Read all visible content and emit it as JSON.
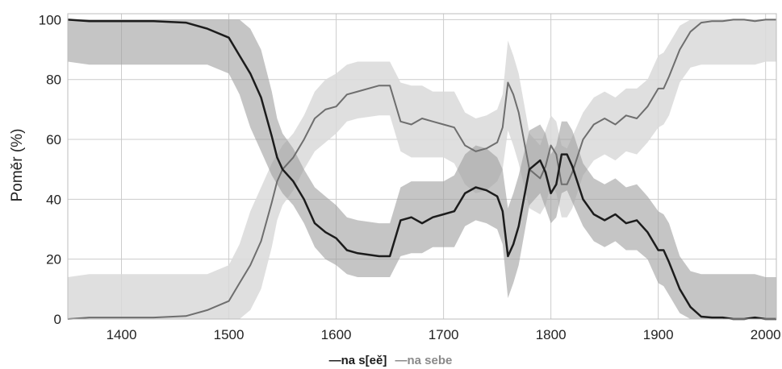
{
  "chart_data": {
    "type": "line",
    "title": "",
    "xlabel": "",
    "ylabel": "Poměr (%)",
    "xlim": [
      1350,
      2010
    ],
    "ylim": [
      0,
      102
    ],
    "xticks": [
      1400,
      1500,
      1600,
      1700,
      1800,
      1900,
      2000
    ],
    "yticks": [
      0,
      20,
      40,
      60,
      80,
      100
    ],
    "xtick_labels": [
      "1400",
      "1500",
      "1600",
      "1700",
      "1800",
      "1900",
      "2000"
    ],
    "ytick_labels": [
      "0",
      "20",
      "40",
      "60",
      "80",
      "100"
    ],
    "grid": true,
    "legend_position": "bottom-center",
    "colors": {
      "na_see": "#1c1c1c",
      "na_sebe": "#6e6e6e",
      "band_dark": "#9e9e9e",
      "band_light": "#d9d9d9",
      "grid": "#cccccc"
    },
    "legend": {
      "dash": "—",
      "s1": "na s[eě]",
      "s2": "na sebe"
    },
    "series": [
      {
        "name": "na s[eě]",
        "x": [
          1350,
          1370,
          1400,
          1430,
          1460,
          1480,
          1500,
          1510,
          1520,
          1530,
          1540,
          1545,
          1550,
          1560,
          1570,
          1580,
          1590,
          1600,
          1610,
          1620,
          1640,
          1650,
          1660,
          1670,
          1680,
          1690,
          1700,
          1710,
          1720,
          1730,
          1740,
          1750,
          1755,
          1760,
          1765,
          1770,
          1780,
          1790,
          1795,
          1800,
          1805,
          1810,
          1815,
          1820,
          1830,
          1840,
          1850,
          1860,
          1870,
          1880,
          1890,
          1900,
          1905,
          1910,
          1920,
          1930,
          1940,
          1950,
          1960,
          1970,
          1980,
          1990,
          2000,
          2010
        ],
        "y": [
          100,
          99.5,
          99.5,
          99.5,
          99,
          97,
          94,
          88,
          82,
          74,
          61,
          54,
          50,
          46,
          40,
          32,
          29,
          27,
          23,
          22,
          21,
          21,
          33,
          34,
          32,
          34,
          35,
          36,
          42,
          44,
          43,
          41,
          36,
          21,
          25,
          31,
          50,
          53,
          49,
          42,
          45,
          55,
          55,
          51,
          40,
          35,
          33,
          35,
          32,
          33,
          29,
          23,
          23,
          19,
          10,
          4,
          0.8,
          0.5,
          0.5,
          0,
          0,
          0.5,
          0,
          0
        ],
        "ci_lower": [
          86,
          85,
          85,
          85,
          85,
          85,
          82,
          75,
          64,
          56,
          48,
          45,
          42,
          38,
          32,
          24,
          20,
          18,
          15,
          14,
          14,
          14,
          21,
          22,
          22,
          24,
          24,
          24,
          31,
          33,
          32,
          30,
          25,
          7,
          12,
          18,
          38,
          42,
          37,
          32,
          34,
          42,
          43,
          39,
          31,
          26,
          24,
          26,
          23,
          23,
          20,
          12,
          11,
          8,
          2,
          0,
          0,
          0,
          0,
          0,
          0,
          0,
          0,
          0
        ],
        "ci_upper": [
          100,
          100,
          100,
          100,
          100,
          100,
          100,
          100,
          97,
          90,
          76,
          67,
          62,
          57,
          50,
          44,
          41,
          38,
          34,
          33,
          32,
          32,
          44,
          46,
          46,
          46,
          46,
          48,
          55,
          58,
          57,
          54,
          50,
          37,
          42,
          48,
          63,
          65,
          62,
          55,
          58,
          66,
          66,
          63,
          52,
          47,
          45,
          47,
          44,
          45,
          41,
          36,
          35,
          32,
          21,
          16,
          15,
          15,
          15,
          15,
          15,
          15,
          14,
          14
        ]
      },
      {
        "name": "na sebe",
        "x": [
          1350,
          1370,
          1400,
          1430,
          1460,
          1480,
          1500,
          1510,
          1520,
          1530,
          1540,
          1545,
          1550,
          1560,
          1570,
          1580,
          1590,
          1600,
          1610,
          1620,
          1640,
          1650,
          1660,
          1670,
          1680,
          1690,
          1700,
          1710,
          1720,
          1730,
          1740,
          1750,
          1755,
          1760,
          1765,
          1770,
          1780,
          1790,
          1795,
          1800,
          1805,
          1810,
          1815,
          1820,
          1830,
          1840,
          1850,
          1860,
          1870,
          1880,
          1890,
          1900,
          1905,
          1910,
          1920,
          1930,
          1940,
          1950,
          1960,
          1970,
          1980,
          1990,
          2000,
          2010
        ],
        "y": [
          0,
          0.5,
          0.5,
          0.5,
          1,
          3,
          6,
          12,
          18,
          26,
          39,
          46,
          50,
          54,
          60,
          67,
          70,
          71,
          75,
          76,
          78,
          78,
          66,
          65,
          67,
          66,
          65,
          64,
          58,
          56,
          57,
          59,
          64,
          79,
          75,
          69,
          50,
          47,
          51,
          58,
          55,
          45,
          45,
          49,
          60,
          65,
          67,
          65,
          68,
          67,
          71,
          77,
          77,
          81,
          90,
          96,
          99,
          99.5,
          99.5,
          100,
          100,
          99.5,
          100,
          100
        ],
        "ci_lower": [
          0,
          0,
          0,
          0,
          0,
          0,
          0,
          0,
          3,
          10,
          24,
          33,
          38,
          43,
          50,
          56,
          59,
          62,
          66,
          67,
          68,
          68,
          56,
          54,
          54,
          54,
          54,
          52,
          45,
          42,
          43,
          46,
          50,
          63,
          58,
          52,
          37,
          35,
          38,
          45,
          42,
          34,
          34,
          37,
          48,
          53,
          55,
          53,
          56,
          55,
          59,
          64,
          65,
          68,
          79,
          84,
          85,
          85,
          85,
          85,
          85,
          85,
          86,
          86
        ],
        "ci_upper": [
          14,
          15,
          15,
          15,
          15,
          15,
          18,
          25,
          36,
          44,
          52,
          55,
          58,
          62,
          68,
          76,
          80,
          82,
          85,
          86,
          86,
          86,
          79,
          78,
          78,
          76,
          76,
          76,
          69,
          67,
          68,
          70,
          75,
          93,
          88,
          82,
          62,
          58,
          63,
          68,
          66,
          58,
          57,
          61,
          69,
          74,
          76,
          74,
          77,
          77,
          80,
          88,
          89,
          92,
          98,
          100,
          100,
          100,
          100,
          100,
          100,
          100,
          100,
          100
        ]
      }
    ]
  }
}
